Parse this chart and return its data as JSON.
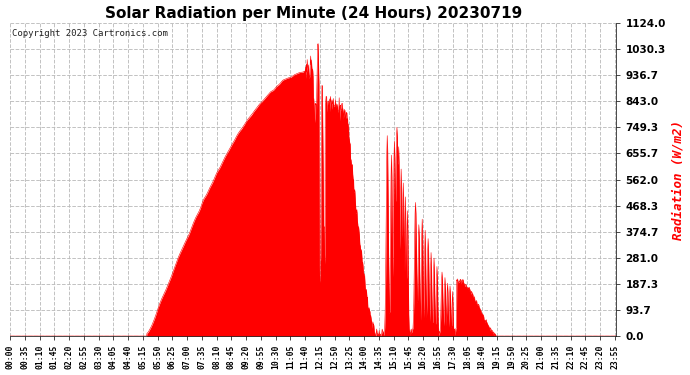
{
  "title": "Solar Radiation per Minute (24 Hours) 20230719",
  "ylabel": "Radiation (W/m2)",
  "copyright": "Copyright 2023 Cartronics.com",
  "bg_color": "#ffffff",
  "plot_bg_color": "#ffffff",
  "fill_color": "#ff0000",
  "line_color": "#ff0000",
  "grid_color": "#bbbbbb",
  "ylabel_color": "#ff0000",
  "title_color": "#000000",
  "yticks": [
    0.0,
    93.7,
    187.3,
    281.0,
    374.7,
    468.3,
    562.0,
    655.7,
    749.3,
    843.0,
    936.7,
    1030.3,
    1124.0
  ],
  "ymin": 0.0,
  "ymax": 1124.0
}
